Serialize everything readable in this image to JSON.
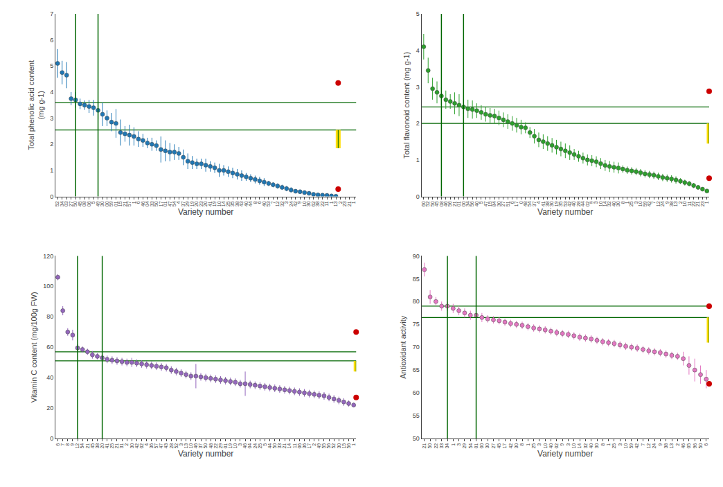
{
  "chart_data": [
    {
      "type": "scatter",
      "marker": "circle",
      "grid": false,
      "xlabel": "Variety number",
      "ylabel": "Total phenolic acid content\n(mg g-1)",
      "categories": [
        "52",
        "34",
        "03",
        "27",
        "50",
        "45",
        "08",
        "06",
        "5",
        "49",
        "30",
        "00",
        "59",
        "01",
        "15",
        "21",
        "57",
        "1",
        "6",
        "46",
        "04",
        "33",
        "50",
        "17",
        "01",
        "47",
        "54",
        "4",
        "37",
        "29",
        "19",
        "20",
        "23",
        "20",
        "41",
        "19",
        "10",
        "14",
        "25",
        "35",
        "38",
        "43",
        "40",
        "44",
        "8",
        "6",
        "40",
        "53",
        "7",
        "12",
        "32",
        "3",
        "24",
        "42",
        "9",
        "10",
        "30",
        "62",
        "38",
        "22",
        "11",
        "1",
        "13",
        "2",
        "23",
        "21",
        "1"
      ],
      "values": [
        5.1,
        4.75,
        4.65,
        3.75,
        3.7,
        3.55,
        3.5,
        3.45,
        3.4,
        3.3,
        3.15,
        3.0,
        2.85,
        2.8,
        2.45,
        2.4,
        2.35,
        2.3,
        2.2,
        2.15,
        2.05,
        2.0,
        1.95,
        1.8,
        1.75,
        1.7,
        1.7,
        1.65,
        1.5,
        1.35,
        1.3,
        1.25,
        1.25,
        1.2,
        1.15,
        1.1,
        1.0,
        1.0,
        0.95,
        0.9,
        0.85,
        0.8,
        0.75,
        0.7,
        0.65,
        0.6,
        0.55,
        0.5,
        0.45,
        0.4,
        0.35,
        0.3,
        0.25,
        0.2,
        0.18,
        0.15,
        0.12,
        0.08,
        0.06,
        0.05,
        0.04,
        0.02,
        0.01,
        null,
        null,
        null,
        null
      ],
      "errors": [
        0.55,
        0.45,
        0.5,
        0.25,
        0.3,
        0.2,
        0.18,
        0.25,
        0.3,
        0.35,
        0.45,
        0.3,
        0.35,
        0.55,
        0.5,
        0.3,
        0.4,
        0.35,
        0.3,
        0.25,
        0.2,
        0.25,
        0.2,
        0.5,
        0.4,
        0.35,
        0.3,
        0.25,
        0.3,
        0.3,
        0.25,
        0.2,
        0.2,
        0.25,
        0.2,
        0.2,
        0.25,
        0.2,
        0.2,
        0.2,
        0.2,
        0.2,
        0.15,
        0.15,
        0.15,
        0.15,
        0.15,
        0.1,
        0.1,
        0.1,
        0.1,
        0.1,
        0.1,
        0.08,
        0.08,
        0.07,
        0.06,
        0.05,
        0.04,
        0.04,
        0.03,
        0.03,
        0.02,
        null,
        null,
        null,
        null
      ],
      "ylim": [
        0,
        7
      ],
      "yticks": [
        0,
        1,
        2,
        3,
        4,
        5,
        6,
        7
      ],
      "reference_lines": {
        "y": [
          3.6,
          2.55
        ],
        "x_index": [
          4,
          9
        ],
        "color": "#006600"
      },
      "range_bar": {
        "y": [
          1.85,
          2.55
        ],
        "color": "#ffdd00"
      },
      "red_dots": {
        "y": [
          4.35,
          0.28
        ],
        "color": "#cc0000"
      }
    },
    {
      "type": "scatter",
      "marker": "circle",
      "grid": false,
      "xlabel": "Variety number",
      "ylabel": "Total flavonoid content (mg g-1)",
      "categories": [
        "60",
        "52",
        "50",
        "45",
        "08",
        "46",
        "56",
        "21",
        "01",
        "00",
        "34",
        "56",
        "40",
        "5",
        "47",
        "15",
        "84",
        "30",
        "27",
        "51",
        "6",
        "17",
        "0",
        "48",
        "54",
        "37",
        "4",
        "41",
        "38",
        "30",
        "19",
        "35",
        "53",
        "42",
        "40",
        "28",
        "44",
        "02",
        "9",
        "3",
        "10",
        "14",
        "32",
        "40",
        "30",
        "8",
        "1",
        "25",
        "3",
        "10",
        "59",
        "42",
        "7",
        "12",
        "24",
        "9",
        "38",
        "13",
        "2",
        "10",
        "11",
        "22",
        "21",
        "23",
        "1"
      ],
      "values": [
        4.1,
        3.45,
        2.95,
        2.85,
        2.75,
        2.65,
        2.6,
        2.55,
        2.5,
        2.45,
        2.4,
        2.38,
        2.35,
        2.3,
        2.25,
        2.22,
        2.2,
        2.15,
        2.1,
        2.05,
        2.0,
        1.95,
        1.9,
        1.88,
        1.75,
        1.65,
        1.55,
        1.5,
        1.45,
        1.4,
        1.35,
        1.3,
        1.25,
        1.2,
        1.15,
        1.1,
        1.05,
        1.0,
        0.98,
        0.95,
        0.9,
        0.85,
        0.82,
        0.8,
        0.78,
        0.75,
        0.72,
        0.7,
        0.68,
        0.65,
        0.62,
        0.6,
        0.58,
        0.55,
        0.52,
        0.5,
        0.48,
        0.45,
        0.42,
        0.38,
        0.35,
        0.3,
        0.25,
        0.2,
        0.15
      ],
      "errors": [
        0.35,
        0.35,
        0.3,
        0.3,
        0.25,
        0.25,
        0.2,
        0.3,
        0.3,
        0.2,
        0.25,
        0.25,
        0.2,
        0.2,
        0.2,
        0.2,
        0.2,
        0.2,
        0.2,
        0.2,
        0.2,
        0.2,
        0.2,
        0.15,
        0.15,
        0.2,
        0.2,
        0.2,
        0.2,
        0.2,
        0.2,
        0.2,
        0.2,
        0.2,
        0.15,
        0.15,
        0.15,
        0.15,
        0.15,
        0.15,
        0.15,
        0.15,
        0.15,
        0.15,
        0.15,
        0.1,
        0.1,
        0.1,
        0.1,
        0.1,
        0.1,
        0.1,
        0.1,
        0.1,
        0.1,
        0.1,
        0.1,
        0.1,
        0.08,
        0.08,
        0.07,
        0.07,
        0.06,
        0.05,
        0.04
      ],
      "ylim": [
        0,
        5
      ],
      "yticks": [
        0,
        1,
        2,
        3,
        4,
        5
      ],
      "reference_lines": {
        "y": [
          2.45,
          2.0
        ],
        "x_index": [
          4,
          9
        ],
        "color": "#006600"
      },
      "range_bar": {
        "y": [
          1.45,
          2.0
        ],
        "color": "#ffdd00"
      },
      "red_dots": {
        "y": [
          2.88,
          0.5
        ],
        "color": "#cc0000"
      }
    },
    {
      "type": "scatter",
      "marker": "circle",
      "grid": false,
      "xlabel": "Variety number",
      "ylabel": "Vitamin C content (mg/100g FW)",
      "categories": [
        "6",
        "7",
        "8",
        "9",
        "12",
        "54",
        "21",
        "45",
        "38",
        "20",
        "41",
        "25",
        "21",
        "31",
        "2",
        "30",
        "42",
        "02",
        "4",
        "36",
        "57",
        "47",
        "43",
        "28",
        "52",
        "3",
        "13",
        "10",
        "46",
        "37",
        "50",
        "48",
        "22",
        "29",
        "01",
        "19",
        "10",
        "3",
        "46",
        "04",
        "24",
        "25",
        "5",
        "44",
        "50",
        "33",
        "21",
        "14",
        "11",
        "06",
        "36",
        "17",
        "2",
        "49",
        "55",
        "56",
        "52",
        "30",
        "15",
        "56",
        "1"
      ],
      "values": [
        106,
        84,
        70,
        68,
        59.5,
        58.5,
        57,
        55,
        54,
        53,
        52,
        51.5,
        51,
        50.5,
        50,
        50,
        49.5,
        49,
        48.5,
        48,
        47.5,
        47,
        46.5,
        45,
        44,
        43,
        42,
        41,
        41,
        40.5,
        40,
        39.5,
        39,
        38.5,
        38,
        37.5,
        37,
        36,
        36,
        35.5,
        35,
        34.5,
        34,
        33.5,
        33,
        32.5,
        32,
        31.5,
        31,
        30.5,
        30,
        29.5,
        29,
        28.5,
        28,
        27,
        26,
        25,
        24,
        23,
        22
      ],
      "errors": [
        2,
        3,
        2.5,
        3.5,
        2.5,
        2,
        2,
        2.5,
        2,
        2.5,
        2.5,
        2.5,
        2.5,
        2.5,
        2.5,
        3,
        2.5,
        2.5,
        2.5,
        2.5,
        2.5,
        2.5,
        2.5,
        2.5,
        2.5,
        2.5,
        2.5,
        2.5,
        8,
        2.5,
        2.5,
        2.5,
        2.5,
        2.5,
        2.5,
        2.5,
        2.5,
        2.5,
        8,
        2.5,
        2.5,
        2.5,
        2.5,
        2.5,
        2.5,
        2.5,
        2.5,
        2.5,
        2.5,
        2.5,
        2.5,
        2.5,
        2.5,
        2.5,
        2.5,
        2.5,
        2.5,
        2.5,
        2.5,
        2,
        1.5
      ],
      "ylim": [
        0,
        120
      ],
      "yticks": [
        0,
        20,
        40,
        60,
        80,
        100,
        120
      ],
      "reference_lines": {
        "y": [
          57,
          51
        ],
        "x_index": [
          4,
          9
        ],
        "color": "#006600"
      },
      "range_bar": {
        "y": [
          44,
          51
        ],
        "color": "#ffdd00"
      },
      "red_dots": {
        "y": [
          70,
          27
        ],
        "color": "#cc0000"
      }
    },
    {
      "type": "scatter",
      "marker": "circle",
      "grid": false,
      "xlabel": "Variety number",
      "ylabel": "Antioxidant activity",
      "categories": [
        "21",
        "50",
        "22",
        "33",
        "34",
        "1",
        "3",
        "29",
        "54",
        "01",
        "00",
        "30",
        "27",
        "45",
        "17",
        "42",
        "30",
        "8",
        "1",
        "25",
        "3",
        "10",
        "40",
        "02",
        "9",
        "3",
        "10",
        "14",
        "32",
        "40",
        "30",
        "8",
        "1",
        "25",
        "3",
        "10",
        "59",
        "42",
        "7",
        "12",
        "24",
        "9",
        "38",
        "13",
        "2",
        "46",
        "05",
        "96",
        "50",
        "6"
      ],
      "values": [
        87,
        81,
        80,
        79,
        79,
        78.5,
        78,
        77.5,
        77,
        77,
        76.5,
        76.2,
        76,
        75.8,
        75.5,
        75.2,
        75,
        74.8,
        74.5,
        74.2,
        74,
        73.8,
        73.5,
        73.2,
        73,
        72.8,
        72.5,
        72.2,
        72,
        71.8,
        71.5,
        71.2,
        71,
        70.8,
        70.5,
        70.2,
        70,
        69.8,
        69.5,
        69.2,
        69,
        68.8,
        68.5,
        68.2,
        68,
        67.5,
        66,
        65,
        64,
        63
      ],
      "errors": [
        1.5,
        1.5,
        1,
        1,
        1,
        1,
        1,
        1,
        1,
        1,
        1,
        0.8,
        0.8,
        0.8,
        0.8,
        0.8,
        0.8,
        0.8,
        0.8,
        0.8,
        0.8,
        0.8,
        0.8,
        0.8,
        0.8,
        0.8,
        0.8,
        0.8,
        0.8,
        0.8,
        0.8,
        0.8,
        0.8,
        0.8,
        0.8,
        0.8,
        0.8,
        0.8,
        0.8,
        0.8,
        0.8,
        0.8,
        0.8,
        0.8,
        0.8,
        1.5,
        2,
        2.5,
        2,
        2
      ],
      "ylim": [
        50,
        90
      ],
      "yticks": [
        50,
        55,
        60,
        65,
        70,
        75,
        80,
        85,
        90
      ],
      "reference_lines": {
        "y": [
          79,
          76.5
        ],
        "x_index": [
          4,
          9
        ],
        "color": "#006600"
      },
      "range_bar": {
        "y": [
          71,
          76.5
        ],
        "color": "#ffdd00"
      },
      "red_dots": {
        "y": [
          79,
          62
        ],
        "color": "#cc0000"
      }
    }
  ]
}
